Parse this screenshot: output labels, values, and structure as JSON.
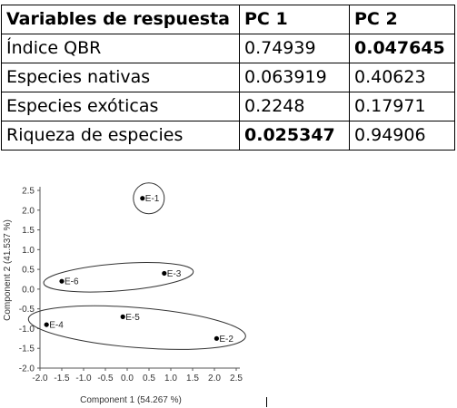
{
  "table": {
    "headers": [
      "Variables de respuesta",
      "PC 1",
      "PC 2"
    ],
    "rows": [
      {
        "label": "Índice QBR",
        "pc1": "0.74939",
        "pc2": "0.047645",
        "pc1_bold": false,
        "pc2_bold": true
      },
      {
        "label": "Especies nativas",
        "pc1": "0.063919",
        "pc2": "0.40623",
        "pc1_bold": false,
        "pc2_bold": false
      },
      {
        "label": "Especies exóticas",
        "pc1": "0.2248",
        "pc2": "0.17971",
        "pc1_bold": false,
        "pc2_bold": false
      },
      {
        "label": "Riqueza de especies",
        "pc1": "0.025347",
        "pc2": "0.94906",
        "pc1_bold": true,
        "pc2_bold": false
      }
    ]
  },
  "chart_data": {
    "type": "scatter",
    "title": "",
    "xlabel": "Component 1 (54.267 %)",
    "ylabel": "Component 2 (41.537 %)",
    "xlim": [
      -2.0,
      2.5
    ],
    "ylim": [
      -2.0,
      2.5
    ],
    "xticks": [
      "-2.0",
      "-1.5",
      "-1.0",
      "-0.5",
      "0.0",
      "0.5",
      "1.0",
      "1.5",
      "2.0",
      "2.5"
    ],
    "yticks": [
      "2.5",
      "2.0",
      "1.5",
      "1.0",
      "0.5",
      "0.0",
      "-0.5",
      "-1.0",
      "-1.5",
      "-2.0"
    ],
    "grid": false,
    "points": [
      {
        "label": "E-1",
        "x": 0.35,
        "y": 2.3
      },
      {
        "label": "E-3",
        "x": 0.85,
        "y": 0.4
      },
      {
        "label": "E-6",
        "x": -1.5,
        "y": 0.2
      },
      {
        "label": "E-5",
        "x": -0.1,
        "y": -0.7
      },
      {
        "label": "E-4",
        "x": -1.85,
        "y": -0.9
      },
      {
        "label": "E-2",
        "x": 2.05,
        "y": -1.25
      }
    ],
    "groups": [
      {
        "members": [
          "E-1"
        ]
      },
      {
        "members": [
          "E-6",
          "E-3"
        ]
      },
      {
        "members": [
          "E-4",
          "E-5",
          "E-2"
        ]
      }
    ]
  }
}
